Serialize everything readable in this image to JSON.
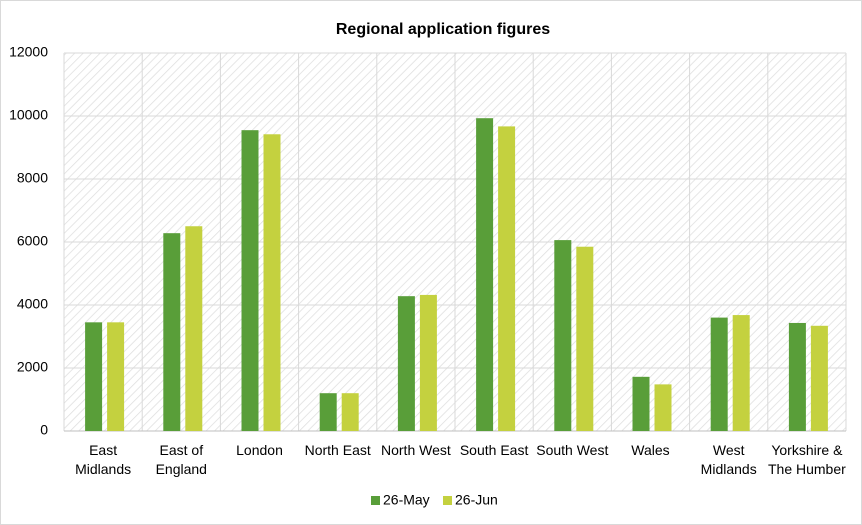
{
  "chart_data": {
    "type": "bar",
    "title": "Regional application figures",
    "categories": [
      "East\nMidlands",
      "East of\nEngland",
      "London",
      "North East",
      "North West",
      "South East",
      "South West",
      "Wales",
      "West\nMidlands",
      "Yorkshire &\nThe Humber"
    ],
    "series": [
      {
        "name": "26-May",
        "color": "#599e39",
        "values": [
          3450,
          6280,
          9550,
          1200,
          4280,
          9930,
          6060,
          1720,
          3600,
          3430
        ]
      },
      {
        "name": "26-Jun",
        "color": "#c4d13f",
        "values": [
          3450,
          6500,
          9420,
          1200,
          4320,
          9670,
          5850,
          1480,
          3680,
          3340
        ]
      }
    ],
    "ylim": [
      0,
      12000
    ],
    "yticks": [
      0,
      2000,
      4000,
      6000,
      8000,
      10000,
      12000
    ],
    "grid": true,
    "legend": "bottom"
  }
}
